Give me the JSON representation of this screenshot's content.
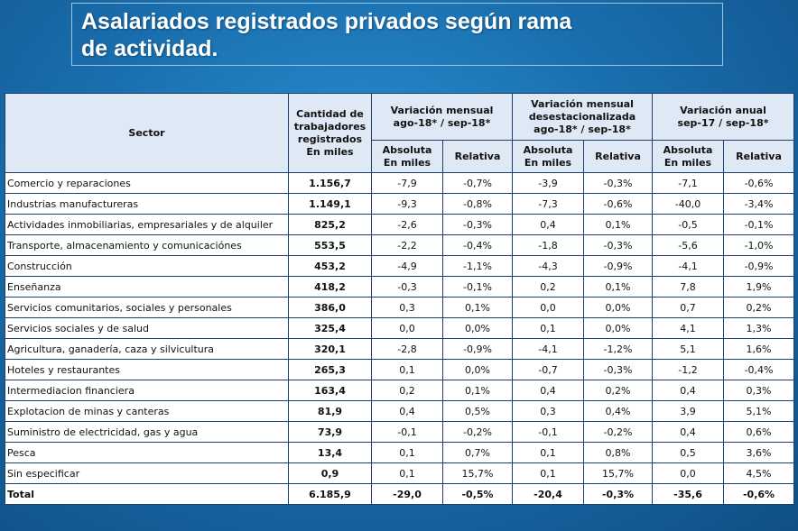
{
  "title_line1": "Asalariados registrados privados según rama",
  "title_line2": "de actividad.",
  "headers": {
    "sector": "Sector",
    "qty_l1": "Cantidad de",
    "qty_l2": "trabajadores",
    "qty_l3": "registrados",
    "qty_l4": "En miles",
    "g1_l1": "Variación mensual",
    "g1_l2": "ago-18* / sep-18*",
    "g2_l1": "Variación mensual",
    "g2_l2": "desestacionalizada",
    "g2_l3": "ago-18* / sep-18*",
    "g3_l1": "Variación anual",
    "g3_l2": "sep-17 / sep-18*",
    "abs_l1": "Absoluta",
    "abs_l2": "En miles",
    "rel": "Relativa"
  },
  "rows": [
    {
      "sector": "Comercio y reparaciones",
      "qty": "1.156,7",
      "m_abs": "-7,9",
      "m_rel": "-0,7%",
      "d_abs": "-3,9",
      "d_rel": "-0,3%",
      "a_abs": "-7,1",
      "a_rel": "-0,6%"
    },
    {
      "sector": "Industrias manufactureras",
      "qty": "1.149,1",
      "m_abs": "-9,3",
      "m_rel": "-0,8%",
      "d_abs": "-7,3",
      "d_rel": "-0,6%",
      "a_abs": "-40,0",
      "a_rel": "-3,4%"
    },
    {
      "sector": "Actividades inmobiliarias, empresariales y de alquiler",
      "qty": "825,2",
      "m_abs": "-2,6",
      "m_rel": "-0,3%",
      "d_abs": "0,4",
      "d_rel": "0,1%",
      "a_abs": "-0,5",
      "a_rel": "-0,1%"
    },
    {
      "sector": "Transporte, almacenamiento y comunicaciónes",
      "qty": "553,5",
      "m_abs": "-2,2",
      "m_rel": "-0,4%",
      "d_abs": "-1,8",
      "d_rel": "-0,3%",
      "a_abs": "-5,6",
      "a_rel": "-1,0%"
    },
    {
      "sector": "Construcción",
      "qty": "453,2",
      "m_abs": "-4,9",
      "m_rel": "-1,1%",
      "d_abs": "-4,3",
      "d_rel": "-0,9%",
      "a_abs": "-4,1",
      "a_rel": "-0,9%"
    },
    {
      "sector": "Enseñanza",
      "qty": "418,2",
      "m_abs": "-0,3",
      "m_rel": "-0,1%",
      "d_abs": "0,2",
      "d_rel": "0,1%",
      "a_abs": "7,8",
      "a_rel": "1,9%"
    },
    {
      "sector": "Servicios comunitarios, sociales y personales",
      "qty": "386,0",
      "m_abs": "0,3",
      "m_rel": "0,1%",
      "d_abs": "0,0",
      "d_rel": "0,0%",
      "a_abs": "0,7",
      "a_rel": "0,2%"
    },
    {
      "sector": "Servicios sociales y de salud",
      "qty": "325,4",
      "m_abs": "0,0",
      "m_rel": "0,0%",
      "d_abs": "0,1",
      "d_rel": "0,0%",
      "a_abs": "4,1",
      "a_rel": "1,3%"
    },
    {
      "sector": "Agricultura, ganadería, caza y silvicultura",
      "qty": "320,1",
      "m_abs": "-2,8",
      "m_rel": "-0,9%",
      "d_abs": "-4,1",
      "d_rel": "-1,2%",
      "a_abs": "5,1",
      "a_rel": "1,6%"
    },
    {
      "sector": "Hoteles y restaurantes",
      "qty": "265,3",
      "m_abs": "0,1",
      "m_rel": "0,0%",
      "d_abs": "-0,7",
      "d_rel": "-0,3%",
      "a_abs": "-1,2",
      "a_rel": "-0,4%"
    },
    {
      "sector": "Intermediacion financiera",
      "qty": "163,4",
      "m_abs": "0,2",
      "m_rel": "0,1%",
      "d_abs": "0,4",
      "d_rel": "0,2%",
      "a_abs": "0,4",
      "a_rel": "0,3%"
    },
    {
      "sector": "Explotacion de minas y canteras",
      "qty": "81,9",
      "m_abs": "0,4",
      "m_rel": "0,5%",
      "d_abs": "0,3",
      "d_rel": "0,4%",
      "a_abs": "3,9",
      "a_rel": "5,1%"
    },
    {
      "sector": "Suministro de electricidad, gas y agua",
      "qty": "73,9",
      "m_abs": "-0,1",
      "m_rel": "-0,2%",
      "d_abs": "-0,1",
      "d_rel": "-0,2%",
      "a_abs": "0,4",
      "a_rel": "0,6%"
    },
    {
      "sector": "Pesca",
      "qty": "13,4",
      "m_abs": "0,1",
      "m_rel": "0,7%",
      "d_abs": "0,1",
      "d_rel": "0,8%",
      "a_abs": "0,5",
      "a_rel": "3,6%"
    },
    {
      "sector": "Sin especificar",
      "qty": "0,9",
      "m_abs": "0,1",
      "m_rel": "15,7%",
      "d_abs": "0,1",
      "d_rel": "15,7%",
      "a_abs": "0,0",
      "a_rel": "4,5%"
    }
  ],
  "total": {
    "sector": "Total",
    "qty": "6.185,9",
    "m_abs": "-29,0",
    "m_rel": "-0,5%",
    "d_abs": "-20,4",
    "d_rel": "-0,3%",
    "a_abs": "-35,6",
    "a_rel": "-0,6%"
  },
  "colors": {
    "background": "#1a6fae",
    "header_cell": "#dfe9f6",
    "cell": "#ffffff",
    "border": "#1d3f6b"
  }
}
